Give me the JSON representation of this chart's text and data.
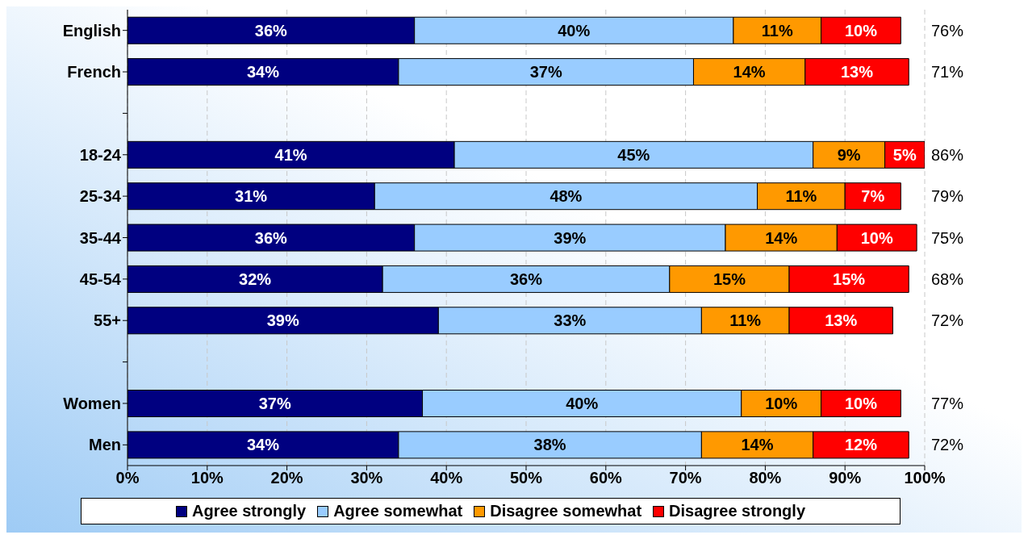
{
  "chart_data": {
    "type": "bar",
    "orientation": "horizontal",
    "stacked": true,
    "categories": [
      "English",
      "French",
      null,
      "18-24",
      "25-34",
      "35-44",
      "45-54",
      "55+",
      null,
      "Women",
      "Men"
    ],
    "series": [
      {
        "name": "Agree strongly",
        "color": "#000080",
        "values": [
          36,
          34,
          null,
          41,
          31,
          36,
          32,
          39,
          null,
          37,
          34
        ],
        "value_labels": [
          "36%",
          "34%",
          null,
          "41%",
          "31%",
          "36%",
          "32%",
          "39%",
          null,
          "37%",
          "34%"
        ]
      },
      {
        "name": "Agree somewhat",
        "color": "#99ccff",
        "values": [
          40,
          37,
          null,
          45,
          48,
          39,
          36,
          33,
          null,
          40,
          38
        ],
        "value_labels": [
          "40%",
          "37%",
          null,
          "45%",
          "48%",
          "39%",
          "36%",
          "33%",
          null,
          "40%",
          "38%"
        ]
      },
      {
        "name": "Disagree somewhat",
        "color": "#ff9900",
        "values": [
          11,
          14,
          null,
          9,
          11,
          14,
          15,
          11,
          null,
          10,
          14
        ],
        "value_labels": [
          "11%",
          "14%",
          null,
          "9%",
          "11%",
          "14%",
          "15%",
          "11%",
          null,
          "10%",
          "14%"
        ]
      },
      {
        "name": "Disagree strongly",
        "color": "#ff0000",
        "values": [
          10,
          13,
          null,
          5,
          7,
          10,
          15,
          13,
          null,
          10,
          12
        ],
        "value_labels": [
          "10%",
          "13%",
          null,
          "5%",
          "7%",
          "10%",
          "15%",
          "13%",
          null,
          "10%",
          "12%"
        ]
      }
    ],
    "xlim": [
      0,
      100
    ],
    "xticks": [
      {
        "value": 0,
        "label": "0%"
      },
      {
        "value": 10,
        "label": "10%"
      },
      {
        "value": 20,
        "label": "20%"
      },
      {
        "value": 30,
        "label": "30%"
      },
      {
        "value": 40,
        "label": "40%"
      },
      {
        "value": 50,
        "label": "50%"
      },
      {
        "value": 60,
        "label": "60%"
      },
      {
        "value": 70,
        "label": "70%"
      },
      {
        "value": 80,
        "label": "80%"
      },
      {
        "value": 90,
        "label": "90%"
      },
      {
        "value": 100,
        "label": "100%"
      }
    ],
    "annotations": [
      "76%",
      "71%",
      "86%",
      "79%",
      "75%",
      "68%",
      "72%",
      "77%",
      "72%"
    ],
    "grid": "x",
    "legend": "bottom"
  }
}
